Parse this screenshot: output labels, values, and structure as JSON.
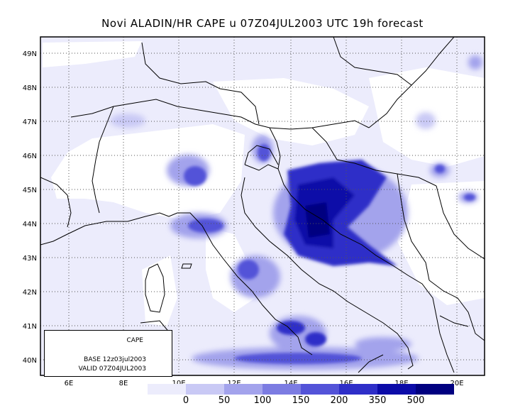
{
  "title": "Novi ALADIN/HR CAPE u 07Z04JUL2003 UTC 19h forecast",
  "lat_labels": [
    "49N",
    "48N",
    "47N",
    "46N",
    "45N",
    "44N",
    "43N",
    "42N",
    "41N",
    "40N"
  ],
  "lon_labels": [
    "6E",
    "8E",
    "10E",
    "12E",
    "14E",
    "16E",
    "18E",
    "20E"
  ],
  "info": {
    "label": "CAPE",
    "base": "BASE 12z03jul2003",
    "valid": "VALID 07Z04JUL2003"
  },
  "legend": {
    "colors": [
      "#ececfc",
      "#c9c9f5",
      "#a3a3ec",
      "#7c7ce2",
      "#5353d8",
      "#2e2ec8",
      "#0b0ba8",
      "#000080"
    ],
    "labels": [
      "0",
      "50",
      "100",
      "150",
      "200",
      "350",
      "500"
    ]
  },
  "colors": {
    "coast": "#000000",
    "grid": "#555555"
  }
}
